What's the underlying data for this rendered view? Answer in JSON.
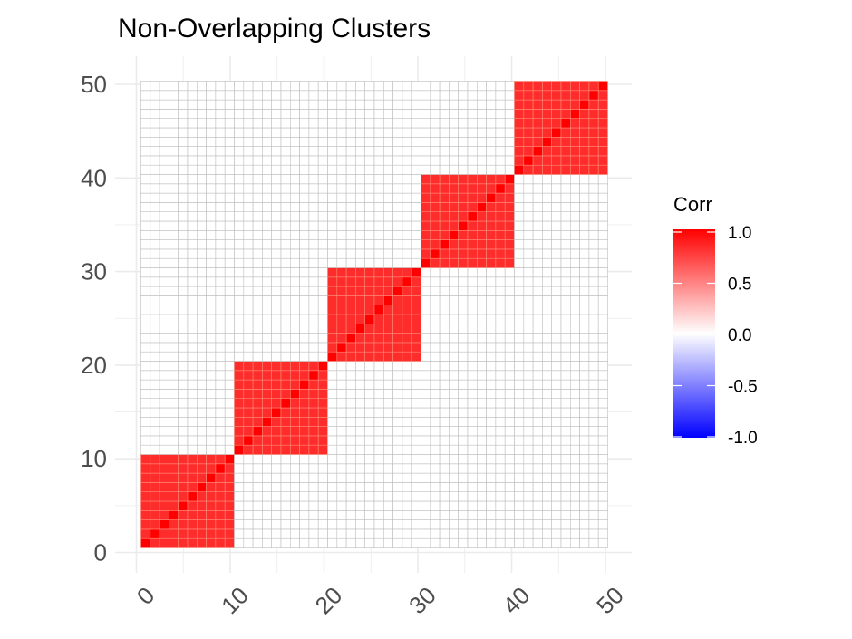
{
  "chart_data": {
    "type": "heatmap",
    "title": "Non-Overlapping Clusters",
    "xlabel": "",
    "ylabel": "",
    "n": 50,
    "xlim": [
      0,
      50
    ],
    "ylim": [
      0,
      50
    ],
    "x_ticks": [
      "0",
      "10",
      "20",
      "30",
      "40",
      "50"
    ],
    "y_ticks": [
      "0",
      "10",
      "20",
      "30",
      "40",
      "50"
    ],
    "clusters": [
      {
        "start": 1,
        "end": 10,
        "corr": 0.8
      },
      {
        "start": 11,
        "end": 20,
        "corr": 0.8
      },
      {
        "start": 21,
        "end": 30,
        "corr": 0.8
      },
      {
        "start": 31,
        "end": 40,
        "corr": 0.8
      },
      {
        "start": 41,
        "end": 50,
        "corr": 0.8
      }
    ],
    "diagonal_corr": 1.0,
    "off_cluster_corr": 0.0,
    "grid": true,
    "legend": {
      "title": "Corr",
      "position": "right",
      "labels": [
        "1.0",
        "0.5",
        "0.0",
        "-0.5",
        "-1.0"
      ],
      "values": [
        1.0,
        0.5,
        0.0,
        -0.5,
        -1.0
      ],
      "low_color": "#0000ff",
      "mid_color": "#ffffff",
      "high_color": "#ff0000"
    }
  }
}
